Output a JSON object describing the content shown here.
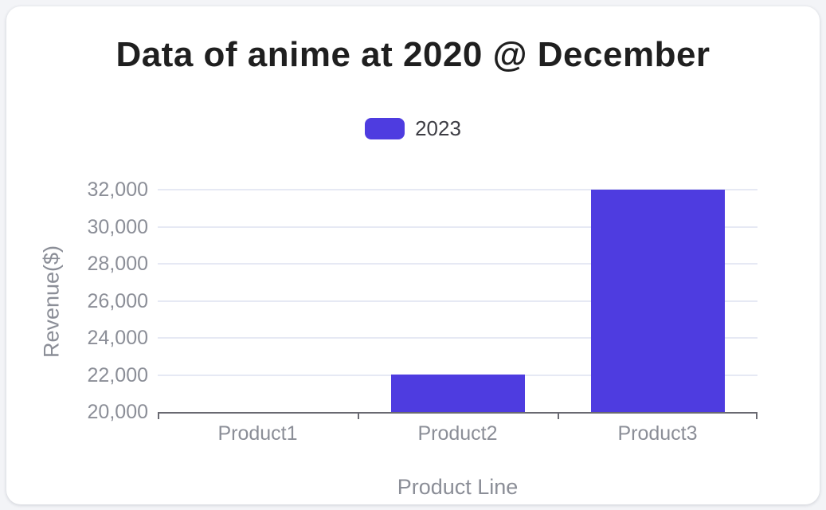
{
  "chart_data": {
    "type": "bar",
    "title": "Data of anime at 2020 @ December",
    "xlabel": "Product Line",
    "ylabel": "Revenue($)",
    "categories": [
      "Product1",
      "Product2",
      "Product3"
    ],
    "series": [
      {
        "name": "2023",
        "color": "#4e3ce0",
        "values": [
          20000,
          22000,
          32000
        ]
      }
    ],
    "ylim": [
      20000,
      32000
    ],
    "ytick_step": 2000,
    "ytick_labels": [
      "20,000",
      "22,000",
      "24,000",
      "26,000",
      "28,000",
      "30,000",
      "32,000"
    ],
    "grid": true,
    "legend_position": "top-center",
    "colors": {
      "bar": "#4e3ce0",
      "gridline": "#e6e9f4",
      "axis_line": "#696971",
      "tick_label": "#8b8e97",
      "axis_title": "#8b8e97",
      "title_text": "#1f1f1f",
      "legend_text": "#3d3d44",
      "card_background": "#ffffff",
      "page_background": "#f3f4f7"
    }
  }
}
